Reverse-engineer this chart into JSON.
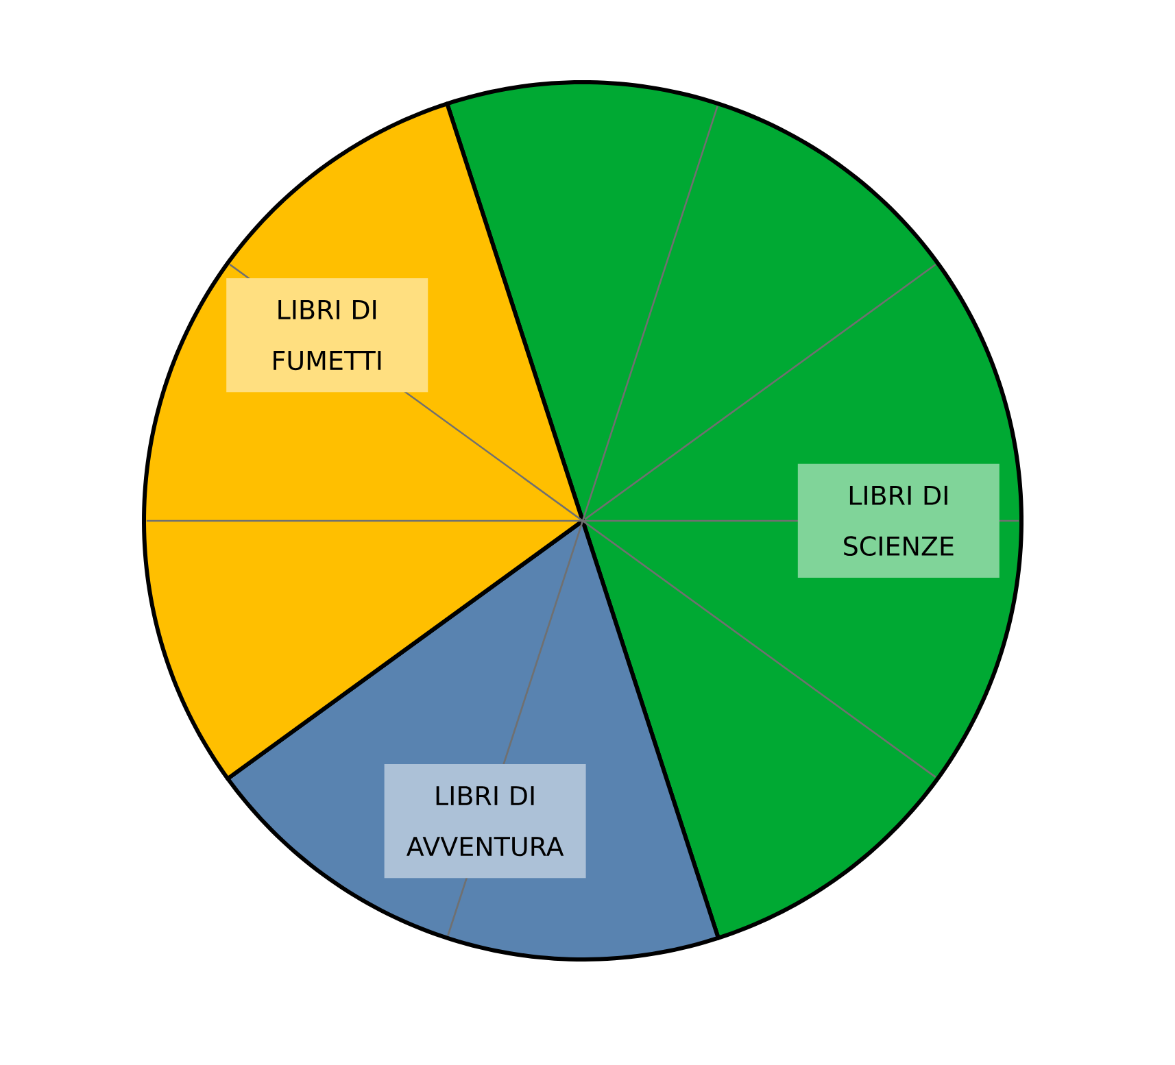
{
  "chart_data": {
    "type": "pie",
    "categories": [
      "LIBRI DI SCIENZE",
      "LIBRI DI AVVENTURA",
      "LIBRI DI FUMETTI"
    ],
    "values": [
      50,
      20,
      30
    ],
    "colors": [
      "#00a933",
      "#5983b0",
      "#ffbf00"
    ],
    "grid": true
  }
}
